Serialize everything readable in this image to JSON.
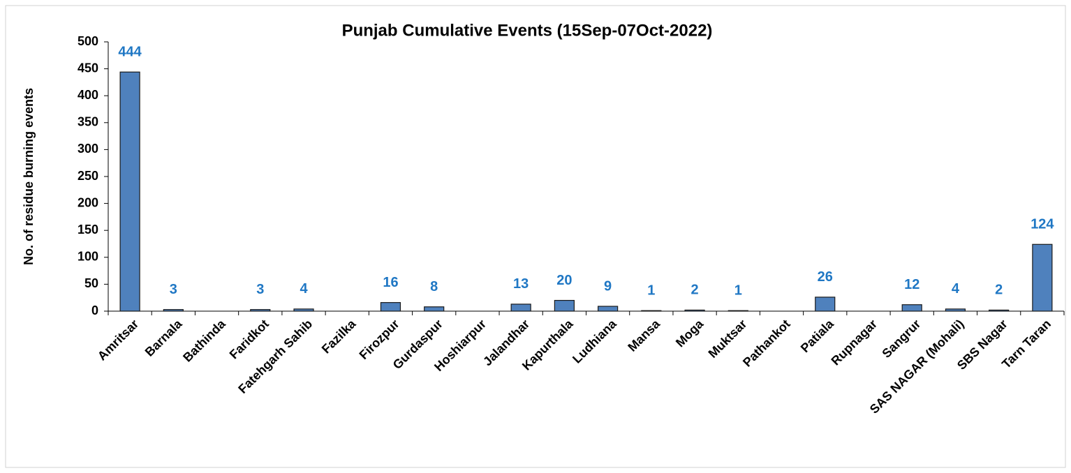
{
  "chart_data": {
    "type": "bar",
    "title": "Punjab Cumulative Events (15Sep-07Oct-2022)",
    "y_label": "No. of residue burning events",
    "categories": [
      "Amritsar",
      "Barnala",
      "Bathinda",
      "Faridkot",
      "Fatehgarh Sahib",
      "Fazilka",
      "Firozpur",
      "Gurdaspur",
      "Hoshiarpur",
      "Jalandhar",
      "Kapurthala",
      "Ludhiana",
      "Mansa",
      "Moga",
      "Muktsar",
      "Pathankot",
      "Patiala",
      "Rupnagar",
      "Sangrur",
      "SAS NAGAR (Mohali)",
      "SBS Nagar",
      "Tarn Taran"
    ],
    "values": [
      444,
      3,
      0,
      3,
      4,
      0,
      16,
      8,
      0,
      13,
      20,
      9,
      1,
      2,
      1,
      0,
      26,
      0,
      12,
      4,
      2,
      124
    ],
    "value_labels": [
      "444",
      "3",
      null,
      "3",
      "4",
      null,
      "16",
      "8",
      null,
      "13",
      "20",
      "9",
      "1",
      "2",
      "1",
      null,
      "26",
      null,
      "12",
      "4",
      "2",
      "124"
    ],
    "color": "#4f81bd",
    "label_color": "#1f77c4",
    "ylim": [
      0,
      500
    ],
    "yticks": [
      0,
      50,
      100,
      150,
      200,
      250,
      300,
      350,
      400,
      450,
      500
    ],
    "grid": false
  }
}
